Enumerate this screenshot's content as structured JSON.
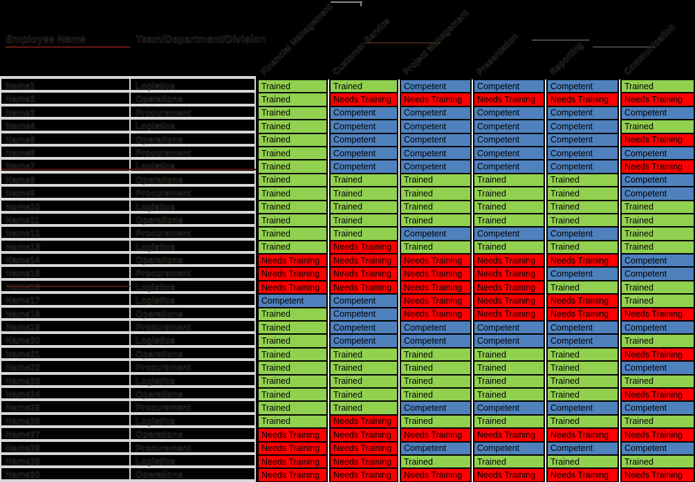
{
  "header": {
    "employee_name_label": "Employee Name",
    "team_label": "Team/Department/Division"
  },
  "columns": [
    "Financial Management",
    "Customer Service",
    "Project Management",
    "Presentation",
    "Reporting",
    "Communication"
  ],
  "status_labels": {
    "T": "Trained",
    "C": "Competent",
    "N": "Needs Training"
  },
  "status_colors": {
    "trained": "#92d050",
    "competent": "#4f81bd",
    "needs_training": "#fe0000"
  },
  "rows": [
    {
      "name": "Name1",
      "position": "Logistics",
      "statuses": [
        "T",
        "T",
        "C",
        "C",
        "C",
        "T"
      ]
    },
    {
      "name": "Name2",
      "position": "Operations",
      "statuses": [
        "T",
        "N",
        "N",
        "N",
        "N",
        "N"
      ]
    },
    {
      "name": "Name3",
      "position": "Procurement",
      "statuses": [
        "T",
        "C",
        "C",
        "C",
        "C",
        "C"
      ]
    },
    {
      "name": "Name4",
      "position": "Logistics",
      "statuses": [
        "T",
        "C",
        "C",
        "C",
        "C",
        "T"
      ]
    },
    {
      "name": "Name5",
      "position": "Operations",
      "statuses": [
        "T",
        "C",
        "C",
        "C",
        "C",
        "N"
      ]
    },
    {
      "name": "Name6",
      "position": "Procurement",
      "statuses": [
        "T",
        "C",
        "C",
        "C",
        "C",
        "C"
      ]
    },
    {
      "name": "Name7",
      "position": "Logistics",
      "statuses": [
        "T",
        "C",
        "C",
        "C",
        "C",
        "N"
      ]
    },
    {
      "name": "Name8",
      "position": "Operations",
      "statuses": [
        "T",
        "T",
        "T",
        "T",
        "T",
        "C"
      ]
    },
    {
      "name": "Name9",
      "position": "Procurement",
      "statuses": [
        "T",
        "T",
        "T",
        "T",
        "T",
        "C"
      ]
    },
    {
      "name": "Name10",
      "position": "Logistics",
      "statuses": [
        "T",
        "T",
        "T",
        "T",
        "T",
        "T"
      ]
    },
    {
      "name": "Name11",
      "position": "Operations",
      "statuses": [
        "T",
        "T",
        "T",
        "T",
        "T",
        "T"
      ]
    },
    {
      "name": "Name12",
      "position": "Procurement",
      "statuses": [
        "T",
        "T",
        "C",
        "C",
        "C",
        "T"
      ]
    },
    {
      "name": "Name13",
      "position": "Logistics",
      "statuses": [
        "T",
        "N",
        "T",
        "T",
        "T",
        "T"
      ]
    },
    {
      "name": "Name14",
      "position": "Operations",
      "statuses": [
        "N",
        "N",
        "N",
        "N",
        "N",
        "C"
      ]
    },
    {
      "name": "Name15",
      "position": "Procurement",
      "statuses": [
        "N",
        "N",
        "N",
        "N",
        "C",
        "C"
      ]
    },
    {
      "name": "Name16",
      "position": "Logistics",
      "statuses": [
        "N",
        "N",
        "N",
        "N",
        "T",
        "T"
      ]
    },
    {
      "name": "Name17",
      "position": "Logistics",
      "statuses": [
        "C",
        "C",
        "N",
        "N",
        "N",
        "T"
      ]
    },
    {
      "name": "Name18",
      "position": "Operations",
      "statuses": [
        "T",
        "C",
        "N",
        "N",
        "N",
        "N"
      ]
    },
    {
      "name": "Name19",
      "position": "Procurement",
      "statuses": [
        "T",
        "C",
        "C",
        "C",
        "C",
        "C"
      ]
    },
    {
      "name": "Name20",
      "position": "Logistics",
      "statuses": [
        "T",
        "C",
        "C",
        "C",
        "C",
        "T"
      ]
    },
    {
      "name": "Name21",
      "position": "Operations",
      "statuses": [
        "T",
        "T",
        "T",
        "T",
        "T",
        "N"
      ]
    },
    {
      "name": "Name22",
      "position": "Procurement",
      "statuses": [
        "T",
        "T",
        "T",
        "T",
        "T",
        "C"
      ]
    },
    {
      "name": "Name23",
      "position": "Logistics",
      "statuses": [
        "T",
        "T",
        "T",
        "T",
        "T",
        "T"
      ]
    },
    {
      "name": "Name24",
      "position": "Operations",
      "statuses": [
        "T",
        "T",
        "T",
        "T",
        "T",
        "N"
      ]
    },
    {
      "name": "Name25",
      "position": "Procurement",
      "statuses": [
        "T",
        "T",
        "C",
        "C",
        "C",
        "C"
      ]
    },
    {
      "name": "Name26",
      "position": "Logistics",
      "statuses": [
        "T",
        "N",
        "T",
        "T",
        "T",
        "T"
      ]
    },
    {
      "name": "Name27",
      "position": "Operations",
      "statuses": [
        "N",
        "N",
        "N",
        "N",
        "N",
        "N"
      ]
    },
    {
      "name": "Name28",
      "position": "Procurement",
      "statuses": [
        "N",
        "N",
        "C",
        "C",
        "C",
        "C"
      ]
    },
    {
      "name": "Name29",
      "position": "Logistics",
      "statuses": [
        "N",
        "N",
        "T",
        "T",
        "T",
        "T"
      ]
    },
    {
      "name": "Name30",
      "position": "Operations",
      "statuses": [
        "N",
        "N",
        "N",
        "N",
        "N",
        "N"
      ]
    }
  ]
}
